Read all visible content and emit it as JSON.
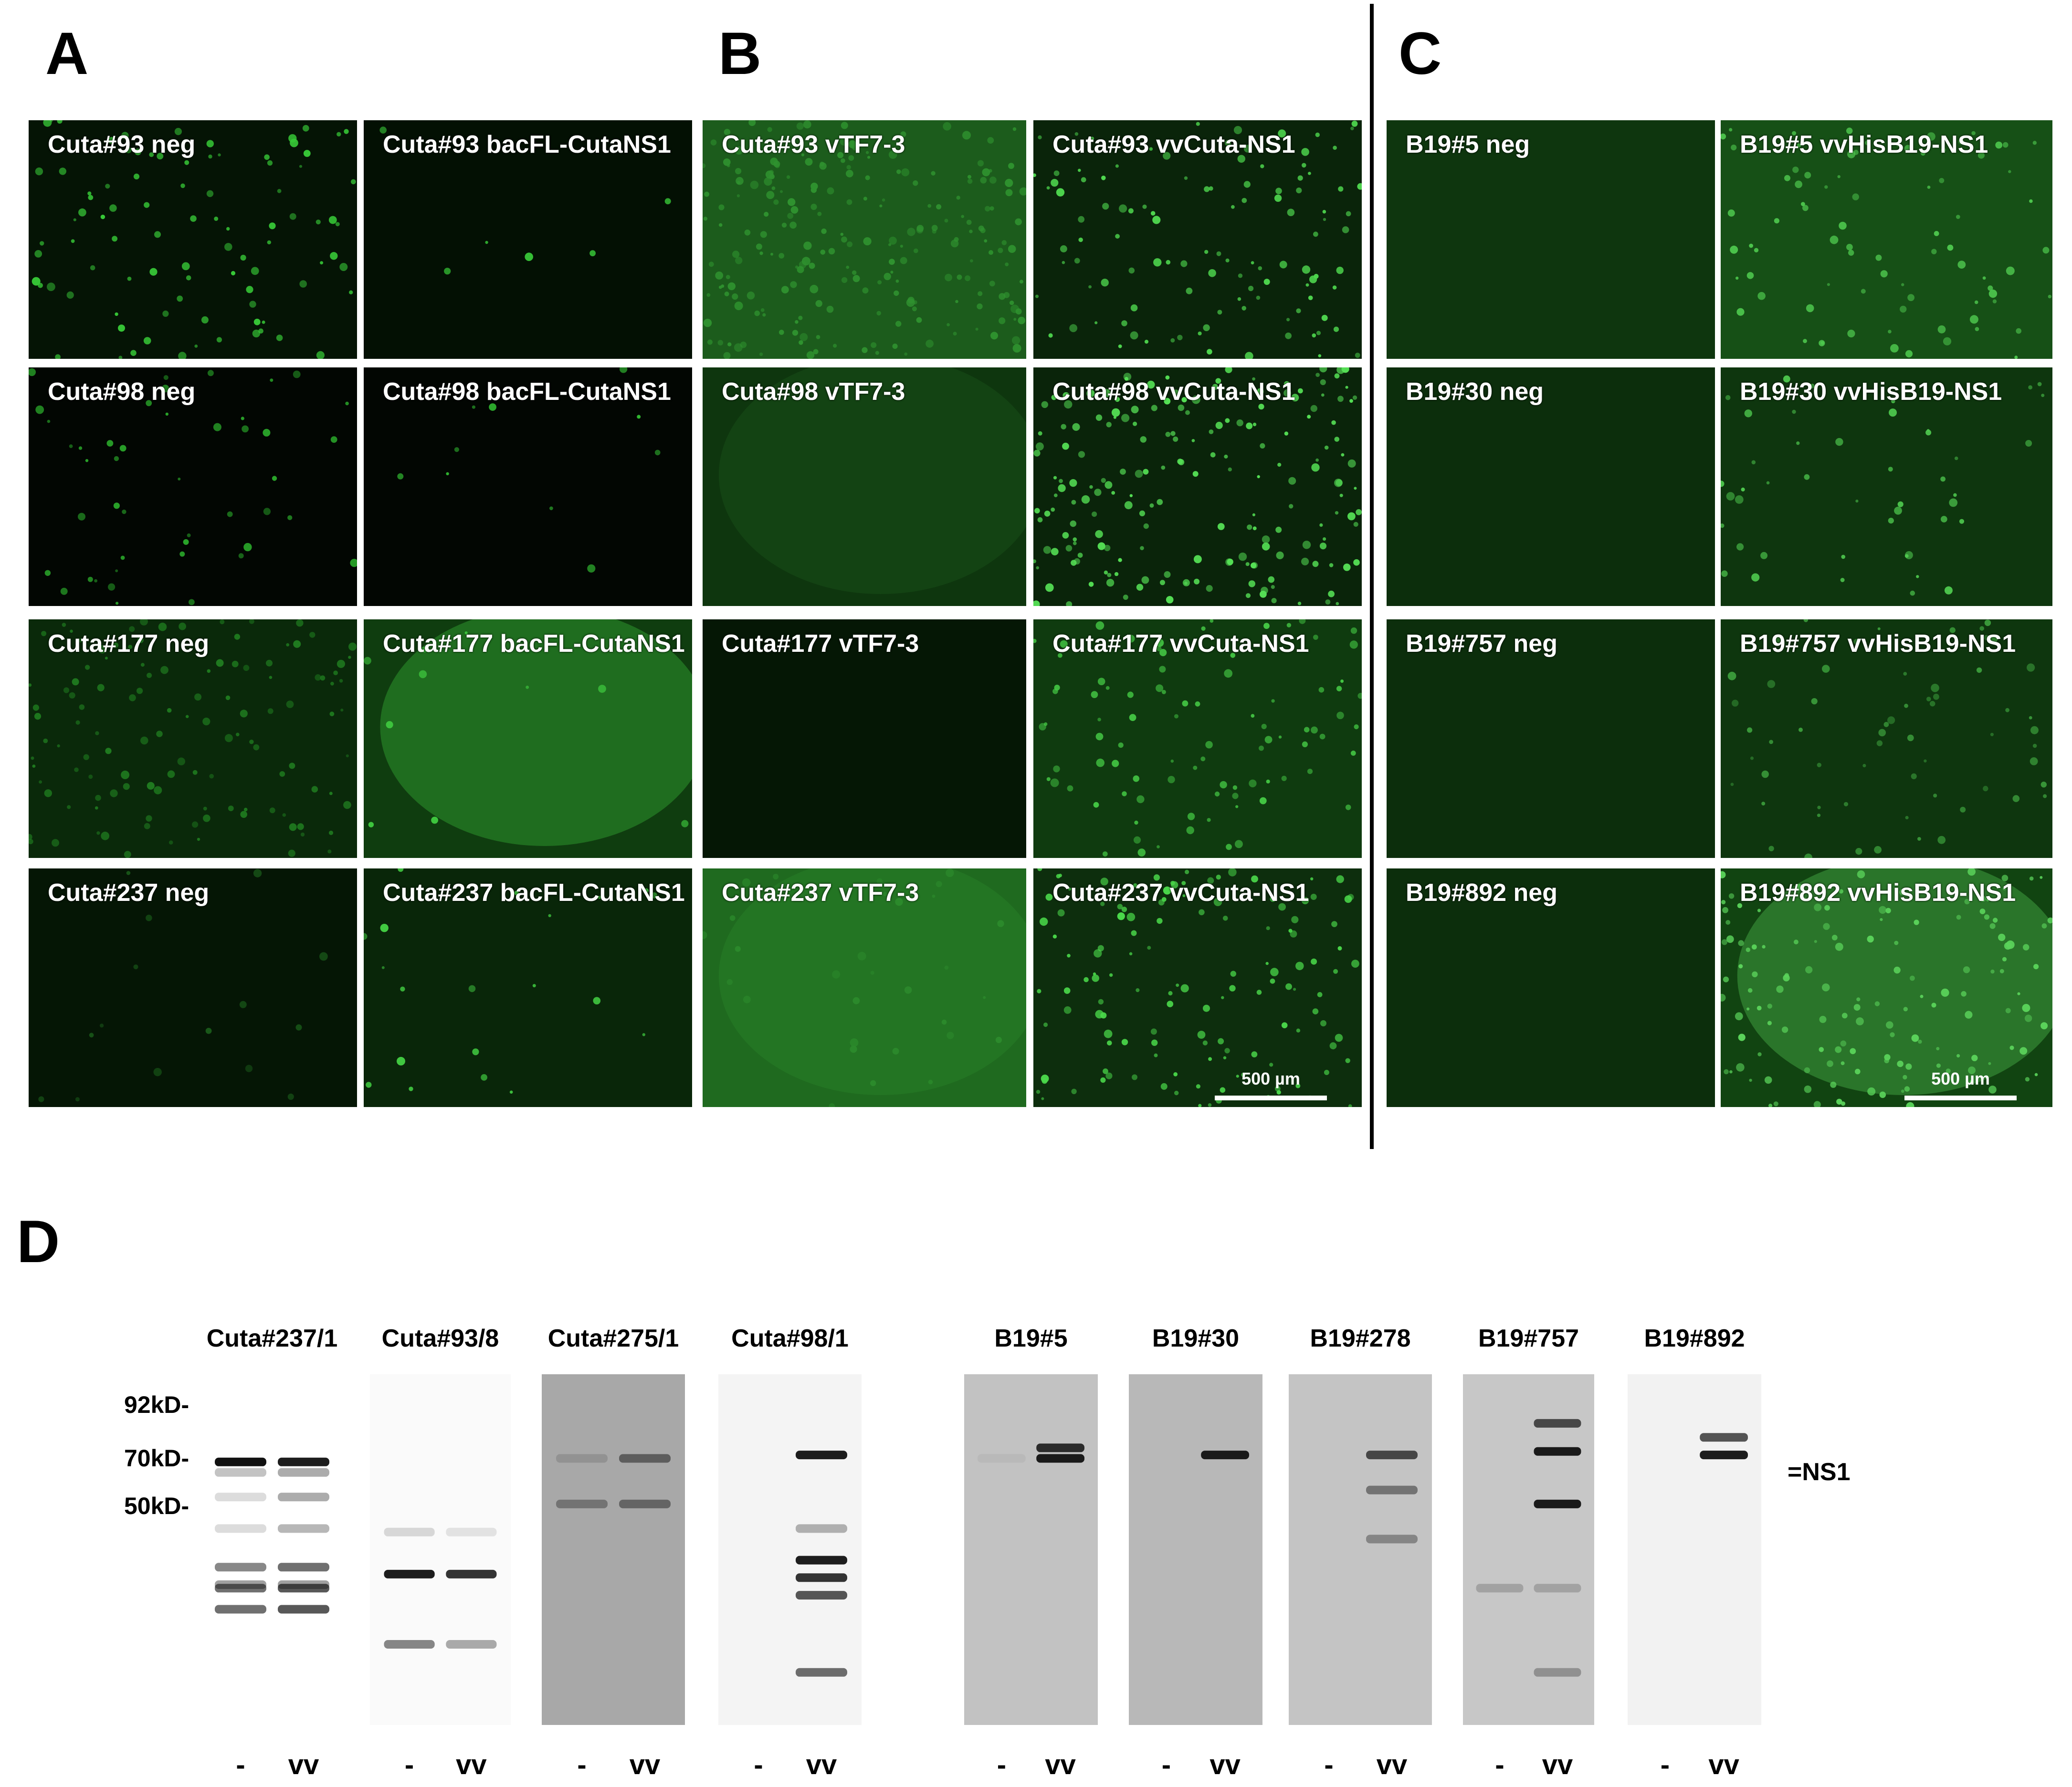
{
  "panel_letters": {
    "a": "A",
    "b": "B",
    "c": "C",
    "d": "D"
  },
  "colors": {
    "fluor_bright": "#2fd42f",
    "fluor_dim": "#0d3a0d",
    "background": "#ffffff"
  },
  "panel_a": {
    "tiles": [
      {
        "label": "Cuta#93 neg",
        "bg": "#051405",
        "cells": 90,
        "cell_color": "#37c837",
        "glow": 0
      },
      {
        "label": "Cuta#93 bacFL-CutaNS1",
        "bg": "#031003",
        "cells": 6,
        "cell_color": "#38c838",
        "glow": 0
      },
      {
        "label": "Cuta#98 neg",
        "bg": "#020602",
        "cells": 45,
        "cell_color": "#2aa82a",
        "glow": 0
      },
      {
        "label": "Cuta#98 bacFL-CutaNS1",
        "bg": "#020602",
        "cells": 10,
        "cell_color": "#30b530",
        "glow": 0
      },
      {
        "label": "Cuta#177 neg",
        "bg": "#0a290a",
        "cells": 120,
        "cell_color": "#1f7a1f",
        "glow": 0
      },
      {
        "label": "Cuta#177 bacFL-CutaNS1",
        "bg": "#0f3d0f",
        "cells": 10,
        "cell_color": "#3ec83e",
        "glow": 1
      },
      {
        "label": "Cuta#237 neg",
        "bg": "#051605",
        "cells": 15,
        "cell_color": "#1a5a1a",
        "glow": 0
      },
      {
        "label": "Cuta#237 bacFL-CutaNS1",
        "bg": "#092609",
        "cells": 20,
        "cell_color": "#43d043",
        "glow": 0
      }
    ]
  },
  "panel_b": {
    "tiles": [
      {
        "label": "Cuta#93 vTF7-3",
        "bg": "#1c5c1c",
        "cells": 220,
        "cell_color": "#2f922f",
        "glow": 0
      },
      {
        "label": "Cuta#93 vvCuta-NS1",
        "bg": "#0a240a",
        "cells": 110,
        "cell_color": "#4ed64e",
        "glow": 0
      },
      {
        "label": "Cuta#98 vTF7-3",
        "bg": "#0e360e",
        "cells": 0,
        "cell_color": "#1c5c1c",
        "glow": 1
      },
      {
        "label": "Cuta#98 vvCuta-NS1",
        "bg": "#0a240a",
        "cells": 190,
        "cell_color": "#55e055",
        "glow": 0
      },
      {
        "label": "Cuta#177 vTF7-3",
        "bg": "#051705",
        "cells": 0,
        "cell_color": "#0d2f0d",
        "glow": 0
      },
      {
        "label": "Cuta#177 vvCuta-NS1",
        "bg": "#0f3b0f",
        "cells": 90,
        "cell_color": "#44c844",
        "glow": 0
      },
      {
        "label": "Cuta#237 vTF7-3",
        "bg": "#1f6a1f",
        "cells": 30,
        "cell_color": "#2c8a2c",
        "glow": 1
      },
      {
        "label": "Cuta#237 vvCuta-NS1",
        "bg": "#0d2e0d",
        "cells": 130,
        "cell_color": "#4ad84a",
        "glow": 0
      }
    ],
    "scalebar": "500 µm"
  },
  "panel_c": {
    "tiles": [
      {
        "label": "B19#5 neg",
        "bg": "#0e360e",
        "cells": 0,
        "cell_color": "#154515",
        "glow": 0
      },
      {
        "label": "B19#5 vvHisB19-NS1",
        "bg": "#165016",
        "cells": 80,
        "cell_color": "#4ec84e",
        "glow": 0
      },
      {
        "label": "B19#30 neg",
        "bg": "#0c2e0c",
        "cells": 0,
        "cell_color": "#154515",
        "glow": 0
      },
      {
        "label": "B19#30 vvHisB19-NS1",
        "bg": "#0e360e",
        "cells": 45,
        "cell_color": "#4ec84e",
        "glow": 0
      },
      {
        "label": "B19#757 neg",
        "bg": "#0c2e0c",
        "cells": 0,
        "cell_color": "#154515",
        "glow": 0
      },
      {
        "label": "B19#757 vvHisB19-NS1",
        "bg": "#0e360e",
        "cells": 60,
        "cell_color": "#3a9a3a",
        "glow": 0
      },
      {
        "label": "B19#892 neg",
        "bg": "#0c2e0c",
        "cells": 0,
        "cell_color": "#154515",
        "glow": 0
      },
      {
        "label": "B19#892 vvHisB19-NS1",
        "bg": "#114411",
        "cells": 140,
        "cell_color": "#5ad25a",
        "glow": 1
      }
    ],
    "scalebar": "500 µm"
  },
  "panel_d": {
    "mw_markers": [
      "92kD-",
      "70kD-",
      "50kD-"
    ],
    "ns1_label": "=NS1",
    "blots": [
      {
        "label": "Cuta#237/1",
        "lanes": [
          "-",
          "vv"
        ],
        "bg": "#ffffff",
        "bands": [
          [
            0.28,
            0.25,
            0.35
          ],
          [
            0.35,
            0.15,
            0.35
          ],
          [
            0.44,
            0.15,
            0.3
          ],
          [
            0.6,
            0.4,
            0.4
          ],
          [
            0.25,
            1.0,
            0.95
          ],
          [
            0.61,
            0.6,
            0.7
          ],
          [
            0.67,
            0.6,
            0.7
          ],
          [
            0.55,
            0.5,
            0.6
          ]
        ]
      },
      {
        "label": "Cuta#93/8",
        "lanes": [
          "-",
          "vv"
        ],
        "bg": "#fafafa",
        "bands": [
          [
            0.57,
            0.95,
            0.85
          ],
          [
            0.77,
            0.5,
            0.35
          ],
          [
            0.45,
            0.15,
            0.1
          ]
        ]
      },
      {
        "label": "Cuta#275/1",
        "lanes": [
          "-",
          "vv"
        ],
        "bg": "#a8a8a8",
        "bands": [
          [
            0.37,
            0.35,
            0.45
          ],
          [
            0.24,
            0.15,
            0.5
          ]
        ]
      },
      {
        "label": "Cuta#98/1",
        "lanes": [
          "-",
          "vv"
        ],
        "bg": "#f4f4f4",
        "bands": [
          [
            0.23,
            0.0,
            0.95
          ],
          [
            0.53,
            0.0,
            0.95
          ],
          [
            0.58,
            0.0,
            0.85
          ],
          [
            0.63,
            0.0,
            0.7
          ],
          [
            0.85,
            0.0,
            0.6
          ],
          [
            0.44,
            0.0,
            0.3
          ]
        ]
      },
      {
        "label": "B19#5",
        "lanes": [
          "-",
          "vv"
        ],
        "bg": "#c2c2c2",
        "bands": [
          [
            0.21,
            0.0,
            0.85
          ],
          [
            0.24,
            0.05,
            0.95
          ]
        ]
      },
      {
        "label": "B19#30",
        "lanes": [
          "-",
          "vv"
        ],
        "bg": "#b8b8b8",
        "bands": [
          [
            0.23,
            0.0,
            0.95
          ]
        ]
      },
      {
        "label": "B19#278",
        "lanes": [
          "-",
          "vv"
        ],
        "bg": "#c4c4c4",
        "bands": [
          [
            0.23,
            0.0,
            0.7
          ],
          [
            0.33,
            0.0,
            0.45
          ],
          [
            0.47,
            0.0,
            0.35
          ]
        ]
      },
      {
        "label": "B19#757",
        "lanes": [
          "-",
          "vv"
        ],
        "bg": "#c7c7c7",
        "bands": [
          [
            0.14,
            0.0,
            0.7
          ],
          [
            0.22,
            0.0,
            0.95
          ],
          [
            0.37,
            0.0,
            0.95
          ],
          [
            0.61,
            0.2,
            0.2
          ],
          [
            0.85,
            0.0,
            0.3
          ]
        ]
      },
      {
        "label": "B19#892",
        "lanes": [
          "-",
          "vv"
        ],
        "bg": "#f2f2f2",
        "bands": [
          [
            0.18,
            0.0,
            0.7
          ],
          [
            0.23,
            0.0,
            0.95
          ]
        ]
      }
    ]
  }
}
